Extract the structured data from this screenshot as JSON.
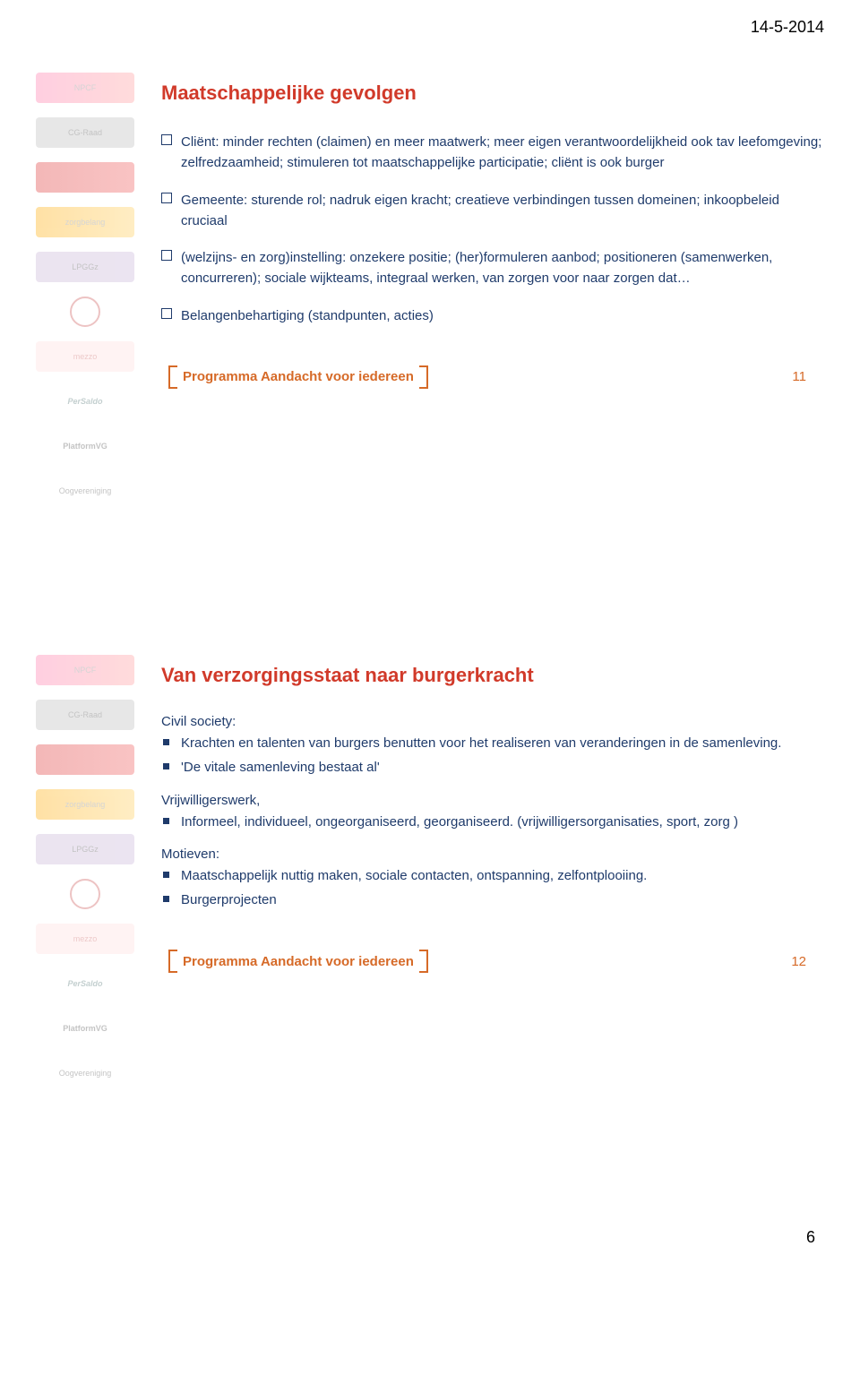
{
  "header_date": "14-5-2014",
  "footer_label": "Programma Aandacht voor iedereen",
  "bottom_page_number": "6",
  "colors": {
    "title": "#d13a2a",
    "body_text": "#1f3b6b",
    "accent": "#d66a28",
    "bullet_box_border": "#1f3b6b",
    "square_bullet_fill": "#1f3b6b",
    "background": "#ffffff"
  },
  "sidebar_logos": [
    "NPCF",
    "CG-Raad",
    "",
    "zorgbelang",
    "LPGGz",
    "",
    "mezzo",
    "PerSaldo",
    "PlatformVG",
    "Oogvereniging"
  ],
  "slide1": {
    "title": "Maatschappelijke gevolgen",
    "page_num": "11",
    "bullets": [
      "Cliënt: minder rechten (claimen) en meer maatwerk; meer eigen verantwoordelijkheid ook tav leefomgeving; zelfredzaamheid; stimuleren tot maatschappelijke participatie; cliënt is ook burger",
      "Gemeente: sturende rol; nadruk eigen kracht; creatieve verbindingen tussen domeinen; inkoopbeleid cruciaal",
      "(welzijns- en zorg)instelling: onzekere positie; (her)formuleren aanbod; positioneren (samenwerken, concurreren); sociale wijkteams, integraal werken, van zorgen voor naar zorgen dat…",
      "Belangenbehartiging (standpunten, acties)"
    ]
  },
  "slide2": {
    "title": "Van verzorgingsstaat naar burgerkracht",
    "page_num": "12",
    "groups": [
      {
        "heading": "Civil society:",
        "items": [
          "Krachten en talenten van burgers benutten voor het realiseren van veranderingen in de samenleving.",
          "'De vitale samenleving bestaat al'"
        ]
      },
      {
        "heading": "Vrijwilligerswerk,",
        "items": [
          "Informeel, individueel, ongeorganiseerd, georganiseerd. (vrijwilligersorganisaties, sport, zorg )"
        ]
      },
      {
        "heading": "Motieven:",
        "items": [
          "Maatschappelijk nuttig maken, sociale contacten, ontspanning, zelfontplooiing.",
          "Burgerprojecten"
        ]
      }
    ]
  }
}
